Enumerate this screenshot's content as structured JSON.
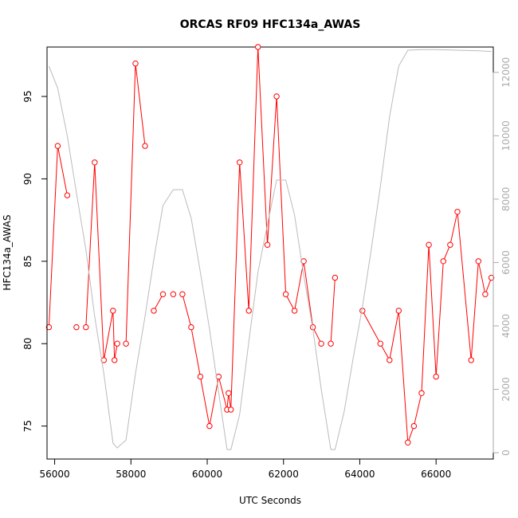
{
  "chart_data": {
    "type": "line",
    "title": "ORCAS RF09 HFC134a_AWAS",
    "xlabel": "UTC Seconds",
    "ylabel": "HFC134a_AWAS",
    "xlim": [
      55800,
      67500
    ],
    "ylim": [
      73,
      98
    ],
    "y2lim": [
      -200,
      12800
    ],
    "x_ticks": [
      56000,
      58000,
      60000,
      62000,
      64000,
      66000
    ],
    "y_ticks": [
      75,
      80,
      85,
      90,
      95
    ],
    "y2_ticks": [
      0,
      2000,
      4000,
      6000,
      8000,
      10000,
      12000
    ],
    "series": [
      {
        "color": "#ff0000",
        "axis": "left",
        "style": "line+points",
        "segments": [
          [
            [
              55850,
              81
            ],
            [
              56080,
              92
            ],
            [
              56330,
              89
            ]
          ],
          [
            [
              56570,
              81
            ]
          ],
          [
            [
              56820,
              81
            ],
            [
              57050,
              91
            ],
            [
              57290,
              79
            ],
            [
              57530,
              82
            ],
            [
              57570,
              79
            ],
            [
              57640,
              80
            ]
          ],
          [
            [
              57870,
              80
            ],
            [
              58120,
              97
            ],
            [
              58370,
              92
            ]
          ],
          [
            [
              58600,
              82
            ],
            [
              58840,
              83
            ]
          ],
          [
            [
              59110,
              83
            ]
          ],
          [
            [
              59350,
              83
            ],
            [
              59580,
              81
            ],
            [
              59820,
              78
            ],
            [
              60060,
              75
            ],
            [
              60300,
              78
            ],
            [
              60520,
              76
            ],
            [
              60560,
              77
            ],
            [
              60620,
              76
            ],
            [
              60850,
              91
            ],
            [
              61090,
              82
            ],
            [
              61330,
              98
            ],
            [
              61580,
              86
            ],
            [
              61820,
              95
            ],
            [
              62060,
              83
            ],
            [
              62290,
              82
            ],
            [
              62530,
              85
            ],
            [
              62770,
              81
            ],
            [
              62990,
              80
            ]
          ],
          [
            [
              63240,
              80
            ],
            [
              63350,
              84
            ]
          ],
          [
            [
              64070,
              82
            ],
            [
              64540,
              80
            ],
            [
              64780,
              79
            ],
            [
              65020,
              82
            ],
            [
              65260,
              74
            ],
            [
              65420,
              75
            ],
            [
              65620,
              77
            ],
            [
              65810,
              86
            ],
            [
              66000,
              78
            ],
            [
              66190,
              85
            ],
            [
              66370,
              86
            ],
            [
              66560,
              88
            ],
            [
              66920,
              79
            ],
            [
              67110,
              85
            ],
            [
              67290,
              83
            ],
            [
              67450,
              84
            ]
          ]
        ]
      },
      {
        "color": "#bbbbbb",
        "axis": "right",
        "style": "line",
        "points": [
          [
            55850,
            12200
          ],
          [
            56080,
            11500
          ],
          [
            56330,
            10000
          ],
          [
            56570,
            8200
          ],
          [
            56820,
            6400
          ],
          [
            57050,
            4300
          ],
          [
            57290,
            2500
          ],
          [
            57530,
            300
          ],
          [
            57640,
            150
          ],
          [
            57870,
            400
          ],
          [
            58120,
            2500
          ],
          [
            58370,
            4300
          ],
          [
            58600,
            6100
          ],
          [
            58840,
            7800
          ],
          [
            59110,
            8300
          ],
          [
            59350,
            8300
          ],
          [
            59580,
            7400
          ],
          [
            59820,
            5700
          ],
          [
            60060,
            3900
          ],
          [
            60300,
            1900
          ],
          [
            60520,
            100
          ],
          [
            60620,
            100
          ],
          [
            60850,
            1200
          ],
          [
            61090,
            3500
          ],
          [
            61330,
            5700
          ],
          [
            61580,
            7200
          ],
          [
            61820,
            8600
          ],
          [
            62060,
            8600
          ],
          [
            62290,
            7500
          ],
          [
            62530,
            5600
          ],
          [
            62770,
            3900
          ],
          [
            62990,
            2000
          ],
          [
            63240,
            100
          ],
          [
            63350,
            100
          ],
          [
            63590,
            1300
          ],
          [
            63830,
            3000
          ],
          [
            64070,
            4600
          ],
          [
            64300,
            6400
          ],
          [
            64540,
            8400
          ],
          [
            64780,
            10600
          ],
          [
            65020,
            12200
          ],
          [
            65260,
            12700
          ],
          [
            65620,
            12720
          ],
          [
            66000,
            12720
          ],
          [
            66560,
            12700
          ],
          [
            67110,
            12680
          ],
          [
            67450,
            12660
          ]
        ]
      }
    ]
  }
}
